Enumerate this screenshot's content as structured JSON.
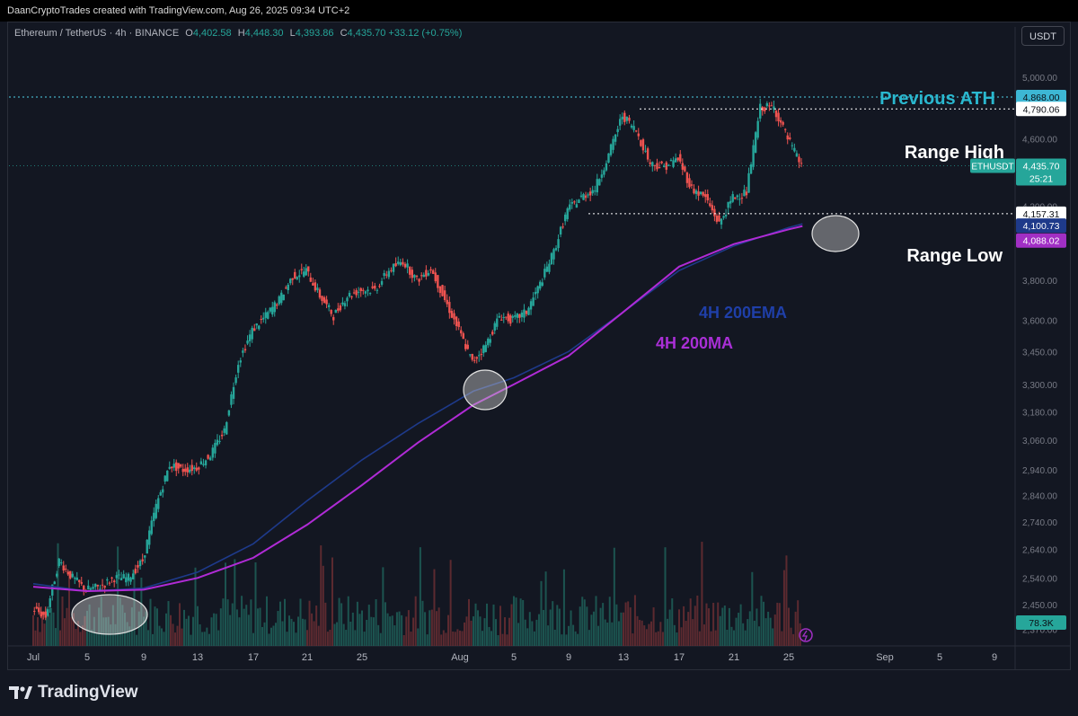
{
  "header": {
    "attribution": "DaanCryptoTrades created with TradingView.com, Aug 26, 2025 09:34 UTC+2"
  },
  "legend": {
    "symbol": "Ethereum / TetherUS · 4h · BINANCE",
    "o_label": "O",
    "o": "4,402.58",
    "h_label": "H",
    "h": "4,448.30",
    "l_label": "L",
    "l": "4,393.86",
    "c_label": "C",
    "c": "4,435.70",
    "change": "+33.12 (+0.75%)"
  },
  "currency_button": "USDT",
  "brand": {
    "name": "TradingView"
  },
  "colors": {
    "background": "#131722",
    "up": "#26a69a",
    "down": "#ef5350",
    "ema": "#1e3a8a",
    "ma": "#b02bd6",
    "ath_annotation": "#2ab8cf",
    "ema_label": "#1f3fa8",
    "ma_label": "#a92fd6"
  },
  "chart_data": {
    "type": "line",
    "title": "Ethereum / TetherUS · 4h · BINANCE",
    "price_scale": "log",
    "y_ticks": [
      "5,000.00",
      "4,600.00",
      "4,200.00",
      "3,800.00",
      "3,600.00",
      "3,450.00",
      "3,300.00",
      "3,180.00",
      "3,060.00",
      "2,940.00",
      "2,840.00",
      "2,740.00",
      "2,640.00",
      "2,540.00",
      "2,450.00",
      "2,370.00"
    ],
    "y_range": [
      2370,
      5200
    ],
    "x_ticks": [
      "Jul",
      "5",
      "9",
      "13",
      "17",
      "21",
      "25",
      "Aug",
      "5",
      "9",
      "13",
      "17",
      "21",
      "25",
      "Sep",
      "5",
      "9"
    ],
    "x_tick_dates": [
      "2025-07-01",
      "2025-07-05",
      "2025-07-09",
      "2025-07-13",
      "2025-07-17",
      "2025-07-21",
      "2025-07-25",
      "2025-08-01",
      "2025-08-05",
      "2025-08-09",
      "2025-08-13",
      "2025-08-17",
      "2025-08-21",
      "2025-08-25",
      "2025-09-01",
      "2025-09-05",
      "2025-09-09"
    ],
    "series": [
      {
        "name": "ETHUSDT",
        "kind": "candles_close_approx",
        "points": [
          [
            "2025-07-01",
            2440
          ],
          [
            "2025-07-02",
            2410
          ],
          [
            "2025-07-03",
            2600
          ],
          [
            "2025-07-04",
            2540
          ],
          [
            "2025-07-05",
            2500
          ],
          [
            "2025-07-06",
            2510
          ],
          [
            "2025-07-07",
            2540
          ],
          [
            "2025-07-08",
            2540
          ],
          [
            "2025-07-09",
            2600
          ],
          [
            "2025-07-10",
            2800
          ],
          [
            "2025-07-11",
            2960
          ],
          [
            "2025-07-12",
            2940
          ],
          [
            "2025-07-13",
            2950
          ],
          [
            "2025-07-14",
            3000
          ],
          [
            "2025-07-15",
            3100
          ],
          [
            "2025-07-16",
            3400
          ],
          [
            "2025-07-17",
            3550
          ],
          [
            "2025-07-18",
            3620
          ],
          [
            "2025-07-19",
            3700
          ],
          [
            "2025-07-20",
            3820
          ],
          [
            "2025-07-21",
            3850
          ],
          [
            "2025-07-22",
            3720
          ],
          [
            "2025-07-23",
            3620
          ],
          [
            "2025-07-24",
            3720
          ],
          [
            "2025-07-25",
            3750
          ],
          [
            "2025-07-26",
            3750
          ],
          [
            "2025-07-27",
            3850
          ],
          [
            "2025-07-28",
            3900
          ],
          [
            "2025-07-29",
            3800
          ],
          [
            "2025-07-30",
            3860
          ],
          [
            "2025-07-31",
            3700
          ],
          [
            "2025-08-01",
            3550
          ],
          [
            "2025-08-02",
            3400
          ],
          [
            "2025-08-03",
            3480
          ],
          [
            "2025-08-04",
            3620
          ],
          [
            "2025-08-05",
            3600
          ],
          [
            "2025-08-06",
            3640
          ],
          [
            "2025-08-07",
            3780
          ],
          [
            "2025-08-08",
            3950
          ],
          [
            "2025-08-09",
            4180
          ],
          [
            "2025-08-10",
            4250
          ],
          [
            "2025-08-11",
            4300
          ],
          [
            "2025-08-12",
            4500
          ],
          [
            "2025-08-13",
            4750
          ],
          [
            "2025-08-14",
            4650
          ],
          [
            "2025-08-15",
            4450
          ],
          [
            "2025-08-16",
            4430
          ],
          [
            "2025-08-17",
            4480
          ],
          [
            "2025-08-18",
            4300
          ],
          [
            "2025-08-19",
            4250
          ],
          [
            "2025-08-20",
            4100
          ],
          [
            "2025-08-21",
            4250
          ],
          [
            "2025-08-22",
            4280
          ],
          [
            "2025-08-23",
            4800
          ],
          [
            "2025-08-24",
            4800
          ],
          [
            "2025-08-25",
            4600
          ],
          [
            "2025-08-26",
            4435.7
          ]
        ]
      },
      {
        "name": "4H 200EMA",
        "points": [
          [
            "2025-07-01",
            2520
          ],
          [
            "2025-07-05",
            2495
          ],
          [
            "2025-07-09",
            2505
          ],
          [
            "2025-07-13",
            2560
          ],
          [
            "2025-07-17",
            2660
          ],
          [
            "2025-07-21",
            2820
          ],
          [
            "2025-07-25",
            2980
          ],
          [
            "2025-07-29",
            3130
          ],
          [
            "2025-08-02",
            3270
          ],
          [
            "2025-08-05",
            3330
          ],
          [
            "2025-08-09",
            3450
          ],
          [
            "2025-08-13",
            3640
          ],
          [
            "2025-08-17",
            3850
          ],
          [
            "2025-08-21",
            3980
          ],
          [
            "2025-08-25",
            4080
          ],
          [
            "2025-08-26",
            4100.73
          ]
        ]
      },
      {
        "name": "4H 200MA",
        "points": [
          [
            "2025-07-01",
            2510
          ],
          [
            "2025-07-05",
            2495
          ],
          [
            "2025-07-09",
            2500
          ],
          [
            "2025-07-13",
            2540
          ],
          [
            "2025-07-17",
            2610
          ],
          [
            "2025-07-21",
            2730
          ],
          [
            "2025-07-25",
            2880
          ],
          [
            "2025-07-29",
            3050
          ],
          [
            "2025-08-02",
            3210
          ],
          [
            "2025-08-05",
            3300
          ],
          [
            "2025-08-09",
            3430
          ],
          [
            "2025-08-13",
            3640
          ],
          [
            "2025-08-17",
            3870
          ],
          [
            "2025-08-21",
            3990
          ],
          [
            "2025-08-25",
            4070
          ],
          [
            "2025-08-26",
            4088.02
          ]
        ]
      }
    ],
    "levels": [
      {
        "label": "Previous ATH",
        "value": 4868.0,
        "value_text": "4,868.00"
      },
      {
        "label": "Range High",
        "value": 4790.06,
        "value_text": "4,790.06"
      },
      {
        "label": "Range Low",
        "value": 4157.31,
        "value_text": "4,157.31"
      }
    ],
    "price_tags": {
      "last_label": "ETHUSDT",
      "last_value": "4,435.70",
      "countdown": "25:21",
      "ema_value": "4,100.73",
      "ma_value": "4,088.02",
      "volume_value": "78.3K"
    },
    "annotations": {
      "ath": "Previous ATH",
      "range_high": "Range High",
      "range_low": "Range Low",
      "ema": "4H 200EMA",
      "ma": "4H 200MA"
    }
  }
}
